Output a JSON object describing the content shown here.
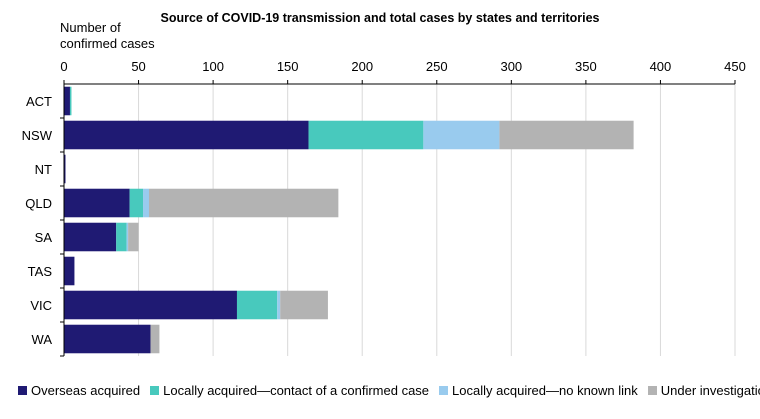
{
  "chart_data": {
    "type": "bar",
    "orientation": "horizontal",
    "stacked": true,
    "title": "Source of COVID-19 transmission and total cases by states and territories",
    "ylabel_lines": [
      "Number of",
      "confirmed cases"
    ],
    "xlim": [
      0,
      450
    ],
    "xticks": [
      0,
      50,
      100,
      150,
      200,
      250,
      300,
      350,
      400,
      450
    ],
    "grid": true,
    "legend_position": "bottom",
    "categories": [
      "ACT",
      "NSW",
      "NT",
      "QLD",
      "SA",
      "TAS",
      "VIC",
      "WA"
    ],
    "series": [
      {
        "name": "Overseas acquired",
        "color": "#1f1a73",
        "values": [
          4,
          164,
          1,
          44,
          35,
          7,
          116,
          58
        ]
      },
      {
        "name": "Locally acquired—contact of a confirmed case",
        "color": "#48c9bd",
        "values": [
          1,
          77,
          0,
          9,
          7,
          0,
          27,
          0
        ]
      },
      {
        "name": "Locally acquired—no known link",
        "color": "#99cbee",
        "values": [
          0,
          51,
          0,
          4,
          1,
          0,
          2,
          0
        ]
      },
      {
        "name": "Under investigation",
        "color": "#b3b3b3",
        "values": [
          0,
          90,
          0,
          127,
          7,
          0,
          32,
          6
        ]
      }
    ]
  }
}
